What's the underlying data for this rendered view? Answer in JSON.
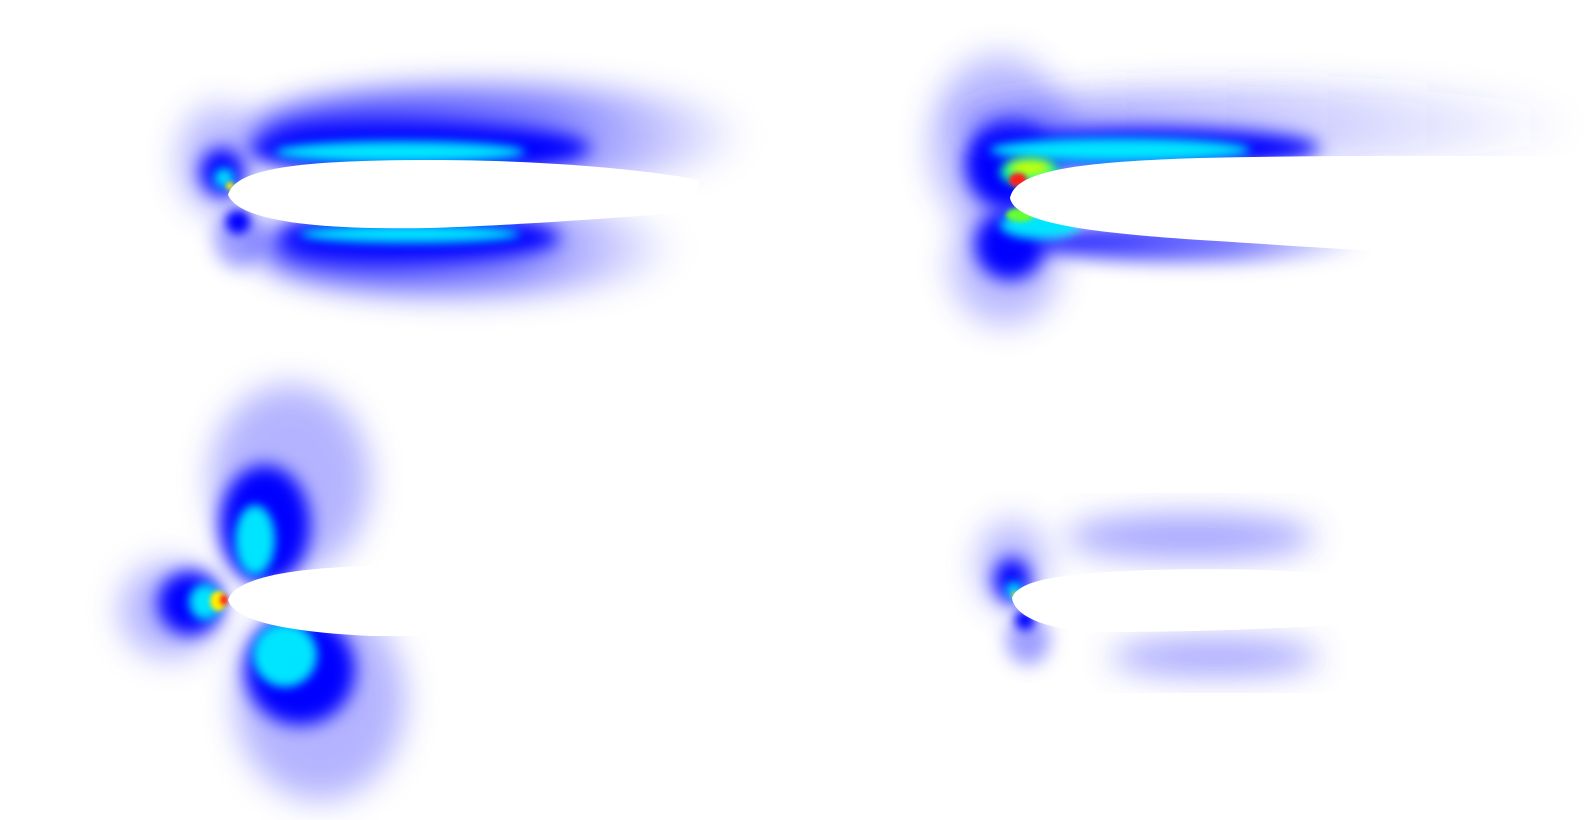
{
  "figure": {
    "panel_count": 4,
    "colormap": [
      "#ffffff",
      "#0000ff",
      "#00ffff",
      "#ffff00",
      "#ff0000"
    ],
    "background": "#ffffff",
    "panels": [
      {
        "id": "top-left",
        "description_icon": "airfoil-field-icon"
      },
      {
        "id": "top-right",
        "description_icon": "airfoil-field-icon"
      },
      {
        "id": "bottom-left",
        "description_icon": "airfoil-field-icon"
      },
      {
        "id": "bottom-right",
        "description_icon": "airfoil-field-icon"
      }
    ]
  }
}
